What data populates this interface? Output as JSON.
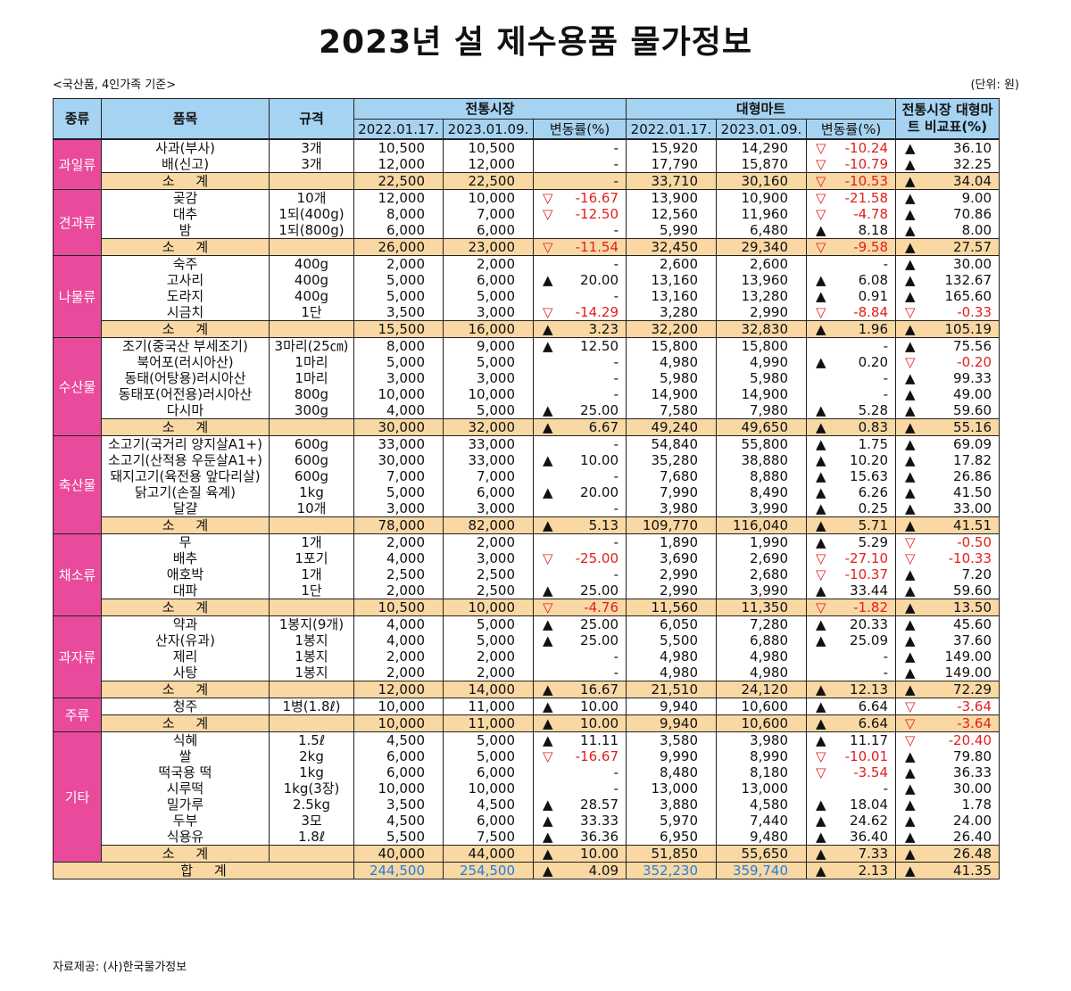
{
  "title": "2023년 설 제수용품 물가정보",
  "basis": "<국산품, 4인가족 기준>",
  "unit": "(단위: 원)",
  "source": "자료제공: (사)한국물가정보",
  "colors": {
    "header": "#a6d3f2",
    "category": "#ea4a9b",
    "subtotal": "#f9d8a3",
    "negative": "#e0201d",
    "total_blue": "#1e7fe0"
  },
  "headers": {
    "category": "종류",
    "item": "품목",
    "spec": "규격",
    "traditional": "전통시장",
    "mart": "대형마트",
    "compare": "전통시장 대형마트 비교표(%)",
    "date1": "2022.01.17.",
    "date2": "2023.01.09.",
    "change": "변동률(%)"
  },
  "subtotal_label": "소     계",
  "total_label": "합     계",
  "groups": [
    {
      "name": "과일류",
      "rows": [
        {
          "item": "사과(부사)",
          "spec": "3개",
          "t1": "10,500",
          "t2": "10,500",
          "tc_sym": "",
          "tc": "-",
          "m1": "15,920",
          "m2": "14,290",
          "mc_sym": "▽",
          "mc": "-10.24",
          "c_sym": "▲",
          "c": "36.10"
        },
        {
          "item": "배(신고)",
          "spec": "3개",
          "t1": "12,000",
          "t2": "12,000",
          "tc_sym": "",
          "tc": "-",
          "m1": "17,790",
          "m2": "15,870",
          "mc_sym": "▽",
          "mc": "-10.79",
          "c_sym": "▲",
          "c": "32.25"
        }
      ],
      "sub": {
        "t1": "22,500",
        "t2": "22,500",
        "tc_sym": "",
        "tc": "-",
        "m1": "33,710",
        "m2": "30,160",
        "mc_sym": "▽",
        "mc": "-10.53",
        "c_sym": "▲",
        "c": "34.04"
      }
    },
    {
      "name": "견과류",
      "rows": [
        {
          "item": "곶감",
          "spec": "10개",
          "t1": "12,000",
          "t2": "10,000",
          "tc_sym": "▽",
          "tc": "-16.67",
          "m1": "13,900",
          "m2": "10,900",
          "mc_sym": "▽",
          "mc": "-21.58",
          "c_sym": "▲",
          "c": "9.00"
        },
        {
          "item": "대추",
          "spec": "1되(400g)",
          "t1": "8,000",
          "t2": "7,000",
          "tc_sym": "▽",
          "tc": "-12.50",
          "m1": "12,560",
          "m2": "11,960",
          "mc_sym": "▽",
          "mc": "-4.78",
          "c_sym": "▲",
          "c": "70.86"
        },
        {
          "item": "밤",
          "spec": "1되(800g)",
          "t1": "6,000",
          "t2": "6,000",
          "tc_sym": "",
          "tc": "-",
          "m1": "5,990",
          "m2": "6,480",
          "mc_sym": "▲",
          "mc": "8.18",
          "c_sym": "▲",
          "c": "8.00"
        }
      ],
      "sub": {
        "t1": "26,000",
        "t2": "23,000",
        "tc_sym": "▽",
        "tc": "-11.54",
        "m1": "32,450",
        "m2": "29,340",
        "mc_sym": "▽",
        "mc": "-9.58",
        "c_sym": "▲",
        "c": "27.57"
      }
    },
    {
      "name": "나물류",
      "rows": [
        {
          "item": "숙주",
          "spec": "400g",
          "t1": "2,000",
          "t2": "2,000",
          "tc_sym": "",
          "tc": "-",
          "m1": "2,600",
          "m2": "2,600",
          "mc_sym": "",
          "mc": "-",
          "c_sym": "▲",
          "c": "30.00"
        },
        {
          "item": "고사리",
          "spec": "400g",
          "t1": "5,000",
          "t2": "6,000",
          "tc_sym": "▲",
          "tc": "20.00",
          "m1": "13,160",
          "m2": "13,960",
          "mc_sym": "▲",
          "mc": "6.08",
          "c_sym": "▲",
          "c": "132.67"
        },
        {
          "item": "도라지",
          "spec": "400g",
          "t1": "5,000",
          "t2": "5,000",
          "tc_sym": "",
          "tc": "-",
          "m1": "13,160",
          "m2": "13,280",
          "mc_sym": "▲",
          "mc": "0.91",
          "c_sym": "▲",
          "c": "165.60"
        },
        {
          "item": "시금치",
          "spec": "1단",
          "t1": "3,500",
          "t2": "3,000",
          "tc_sym": "▽",
          "tc": "-14.29",
          "m1": "3,280",
          "m2": "2,990",
          "mc_sym": "▽",
          "mc": "-8.84",
          "c_sym": "▽",
          "c": "-0.33"
        }
      ],
      "sub": {
        "t1": "15,500",
        "t2": "16,000",
        "tc_sym": "▲",
        "tc": "3.23",
        "m1": "32,200",
        "m2": "32,830",
        "mc_sym": "▲",
        "mc": "1.96",
        "c_sym": "▲",
        "c": "105.19"
      }
    },
    {
      "name": "수산물",
      "rows": [
        {
          "item": "조기(중국산 부세조기)",
          "spec": "3마리(25㎝)",
          "t1": "8,000",
          "t2": "9,000",
          "tc_sym": "▲",
          "tc": "12.50",
          "m1": "15,800",
          "m2": "15,800",
          "mc_sym": "",
          "mc": "-",
          "c_sym": "▲",
          "c": "75.56"
        },
        {
          "item": "북어포(러시아산)",
          "spec": "1마리",
          "t1": "5,000",
          "t2": "5,000",
          "tc_sym": "",
          "tc": "-",
          "m1": "4,980",
          "m2": "4,990",
          "mc_sym": "▲",
          "mc": "0.20",
          "c_sym": "▽",
          "c": "-0.20"
        },
        {
          "item": "동태(어탕용)러시아산",
          "spec": "1마리",
          "t1": "3,000",
          "t2": "3,000",
          "tc_sym": "",
          "tc": "-",
          "m1": "5,980",
          "m2": "5,980",
          "mc_sym": "",
          "mc": "-",
          "c_sym": "▲",
          "c": "99.33"
        },
        {
          "item": "동태포(어전용)러시아산",
          "spec": "800g",
          "t1": "10,000",
          "t2": "10,000",
          "tc_sym": "",
          "tc": "-",
          "m1": "14,900",
          "m2": "14,900",
          "mc_sym": "",
          "mc": "-",
          "c_sym": "▲",
          "c": "49.00"
        },
        {
          "item": "다시마",
          "spec": "300g",
          "t1": "4,000",
          "t2": "5,000",
          "tc_sym": "▲",
          "tc": "25.00",
          "m1": "7,580",
          "m2": "7,980",
          "mc_sym": "▲",
          "mc": "5.28",
          "c_sym": "▲",
          "c": "59.60"
        }
      ],
      "sub": {
        "t1": "30,000",
        "t2": "32,000",
        "tc_sym": "▲",
        "tc": "6.67",
        "m1": "49,240",
        "m2": "49,650",
        "mc_sym": "▲",
        "mc": "0.83",
        "c_sym": "▲",
        "c": "55.16"
      }
    },
    {
      "name": "축산물",
      "rows": [
        {
          "item": "소고기(국거리 양지살A1+)",
          "spec": "600g",
          "t1": "33,000",
          "t2": "33,000",
          "tc_sym": "",
          "tc": "-",
          "m1": "54,840",
          "m2": "55,800",
          "mc_sym": "▲",
          "mc": "1.75",
          "c_sym": "▲",
          "c": "69.09"
        },
        {
          "item": "소고기(산적용 우둔살A1+)",
          "spec": "600g",
          "t1": "30,000",
          "t2": "33,000",
          "tc_sym": "▲",
          "tc": "10.00",
          "m1": "35,280",
          "m2": "38,880",
          "mc_sym": "▲",
          "mc": "10.20",
          "c_sym": "▲",
          "c": "17.82"
        },
        {
          "item": "돼지고기(육전용 앞다리살)",
          "spec": "600g",
          "t1": "7,000",
          "t2": "7,000",
          "tc_sym": "",
          "tc": "-",
          "m1": "7,680",
          "m2": "8,880",
          "mc_sym": "▲",
          "mc": "15.63",
          "c_sym": "▲",
          "c": "26.86"
        },
        {
          "item": "닭고기(손질 육계)",
          "spec": "1kg",
          "t1": "5,000",
          "t2": "6,000",
          "tc_sym": "▲",
          "tc": "20.00",
          "m1": "7,990",
          "m2": "8,490",
          "mc_sym": "▲",
          "mc": "6.26",
          "c_sym": "▲",
          "c": "41.50"
        },
        {
          "item": "달걀",
          "spec": "10개",
          "t1": "3,000",
          "t2": "3,000",
          "tc_sym": "",
          "tc": "-",
          "m1": "3,980",
          "m2": "3,990",
          "mc_sym": "▲",
          "mc": "0.25",
          "c_sym": "▲",
          "c": "33.00"
        }
      ],
      "sub": {
        "t1": "78,000",
        "t2": "82,000",
        "tc_sym": "▲",
        "tc": "5.13",
        "m1": "109,770",
        "m2": "116,040",
        "mc_sym": "▲",
        "mc": "5.71",
        "c_sym": "▲",
        "c": "41.51"
      }
    },
    {
      "name": "채소류",
      "rows": [
        {
          "item": "무",
          "spec": "1개",
          "t1": "2,000",
          "t2": "2,000",
          "tc_sym": "",
          "tc": "-",
          "m1": "1,890",
          "m2": "1,990",
          "mc_sym": "▲",
          "mc": "5.29",
          "c_sym": "▽",
          "c": "-0.50"
        },
        {
          "item": "배추",
          "spec": "1포기",
          "t1": "4,000",
          "t2": "3,000",
          "tc_sym": "▽",
          "tc": "-25.00",
          "m1": "3,690",
          "m2": "2,690",
          "mc_sym": "▽",
          "mc": "-27.10",
          "c_sym": "▽",
          "c": "-10.33"
        },
        {
          "item": "애호박",
          "spec": "1개",
          "t1": "2,500",
          "t2": "2,500",
          "tc_sym": "",
          "tc": "-",
          "m1": "2,990",
          "m2": "2,680",
          "mc_sym": "▽",
          "mc": "-10.37",
          "c_sym": "▲",
          "c": "7.20"
        },
        {
          "item": "대파",
          "spec": "1단",
          "t1": "2,000",
          "t2": "2,500",
          "tc_sym": "▲",
          "tc": "25.00",
          "m1": "2,990",
          "m2": "3,990",
          "mc_sym": "▲",
          "mc": "33.44",
          "c_sym": "▲",
          "c": "59.60"
        }
      ],
      "sub": {
        "t1": "10,500",
        "t2": "10,000",
        "tc_sym": "▽",
        "tc": "-4.76",
        "m1": "11,560",
        "m2": "11,350",
        "mc_sym": "▽",
        "mc": "-1.82",
        "c_sym": "▲",
        "c": "13.50"
      }
    },
    {
      "name": "과자류",
      "rows": [
        {
          "item": "약과",
          "spec": "1봉지(9개)",
          "t1": "4,000",
          "t2": "5,000",
          "tc_sym": "▲",
          "tc": "25.00",
          "m1": "6,050",
          "m2": "7,280",
          "mc_sym": "▲",
          "mc": "20.33",
          "c_sym": "▲",
          "c": "45.60"
        },
        {
          "item": "산자(유과)",
          "spec": "1봉지",
          "t1": "4,000",
          "t2": "5,000",
          "tc_sym": "▲",
          "tc": "25.00",
          "m1": "5,500",
          "m2": "6,880",
          "mc_sym": "▲",
          "mc": "25.09",
          "c_sym": "▲",
          "c": "37.60"
        },
        {
          "item": "제리",
          "spec": "1봉지",
          "t1": "2,000",
          "t2": "2,000",
          "tc_sym": "",
          "tc": "-",
          "m1": "4,980",
          "m2": "4,980",
          "mc_sym": "",
          "mc": "-",
          "c_sym": "▲",
          "c": "149.00"
        },
        {
          "item": "사탕",
          "spec": "1봉지",
          "t1": "2,000",
          "t2": "2,000",
          "tc_sym": "",
          "tc": "-",
          "m1": "4,980",
          "m2": "4,980",
          "mc_sym": "",
          "mc": "-",
          "c_sym": "▲",
          "c": "149.00"
        }
      ],
      "sub": {
        "t1": "12,000",
        "t2": "14,000",
        "tc_sym": "▲",
        "tc": "16.67",
        "m1": "21,510",
        "m2": "24,120",
        "mc_sym": "▲",
        "mc": "12.13",
        "c_sym": "▲",
        "c": "72.29"
      }
    },
    {
      "name": "주류",
      "rows": [
        {
          "item": "청주",
          "spec": "1병(1.8ℓ)",
          "t1": "10,000",
          "t2": "11,000",
          "tc_sym": "▲",
          "tc": "10.00",
          "m1": "9,940",
          "m2": "10,600",
          "mc_sym": "▲",
          "mc": "6.64",
          "c_sym": "▽",
          "c": "-3.64"
        }
      ],
      "sub": {
        "t1": "10,000",
        "t2": "11,000",
        "tc_sym": "▲",
        "tc": "10.00",
        "m1": "9,940",
        "m2": "10,600",
        "mc_sym": "▲",
        "mc": "6.64",
        "c_sym": "▽",
        "c": "-3.64"
      }
    },
    {
      "name": "기타",
      "rows": [
        {
          "item": "식혜",
          "spec": "1.5ℓ",
          "t1": "4,500",
          "t2": "5,000",
          "tc_sym": "▲",
          "tc": "11.11",
          "m1": "3,580",
          "m2": "3,980",
          "mc_sym": "▲",
          "mc": "11.17",
          "c_sym": "▽",
          "c": "-20.40"
        },
        {
          "item": "쌀",
          "spec": "2kg",
          "t1": "6,000",
          "t2": "5,000",
          "tc_sym": "▽",
          "tc": "-16.67",
          "m1": "9,990",
          "m2": "8,990",
          "mc_sym": "▽",
          "mc": "-10.01",
          "c_sym": "▲",
          "c": "79.80"
        },
        {
          "item": "떡국용 떡",
          "spec": "1kg",
          "t1": "6,000",
          "t2": "6,000",
          "tc_sym": "",
          "tc": "-",
          "m1": "8,480",
          "m2": "8,180",
          "mc_sym": "▽",
          "mc": "-3.54",
          "c_sym": "▲",
          "c": "36.33"
        },
        {
          "item": "시루떡",
          "spec": "1kg(3장)",
          "t1": "10,000",
          "t2": "10,000",
          "tc_sym": "",
          "tc": "-",
          "m1": "13,000",
          "m2": "13,000",
          "mc_sym": "",
          "mc": "-",
          "c_sym": "▲",
          "c": "30.00"
        },
        {
          "item": "밀가루",
          "spec": "2.5kg",
          "t1": "3,500",
          "t2": "4,500",
          "tc_sym": "▲",
          "tc": "28.57",
          "m1": "3,880",
          "m2": "4,580",
          "mc_sym": "▲",
          "mc": "18.04",
          "c_sym": "▲",
          "c": "1.78"
        },
        {
          "item": "두부",
          "spec": "3모",
          "t1": "4,500",
          "t2": "6,000",
          "tc_sym": "▲",
          "tc": "33.33",
          "m1": "5,970",
          "m2": "7,440",
          "mc_sym": "▲",
          "mc": "24.62",
          "c_sym": "▲",
          "c": "24.00"
        },
        {
          "item": "식용유",
          "spec": "1.8ℓ",
          "t1": "5,500",
          "t2": "7,500",
          "tc_sym": "▲",
          "tc": "36.36",
          "m1": "6,950",
          "m2": "9,480",
          "mc_sym": "▲",
          "mc": "36.40",
          "c_sym": "▲",
          "c": "26.40"
        }
      ],
      "sub": {
        "t1": "40,000",
        "t2": "44,000",
        "tc_sym": "▲",
        "tc": "10.00",
        "m1": "51,850",
        "m2": "55,650",
        "mc_sym": "▲",
        "mc": "7.33",
        "c_sym": "▲",
        "c": "26.48"
      }
    }
  ],
  "total": {
    "t1": "244,500",
    "t2": "254,500",
    "tc_sym": "▲",
    "tc": "4.09",
    "m1": "352,230",
    "m2": "359,740",
    "mc_sym": "▲",
    "mc": "2.13",
    "c_sym": "▲",
    "c": "41.35"
  }
}
